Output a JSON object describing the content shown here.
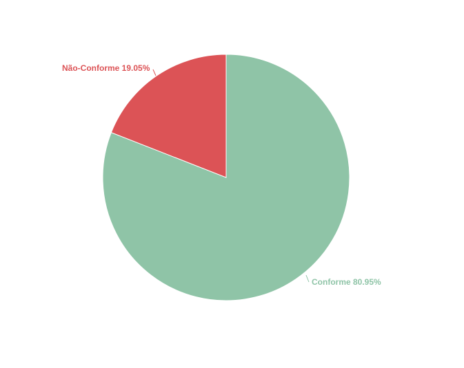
{
  "chart_data": {
    "type": "pie",
    "slices": [
      {
        "label": "Conforme",
        "value": 80.95,
        "text": "Conforme 80.95%",
        "color": "#8fc4a7"
      },
      {
        "label": "Não-Conforme",
        "value": 19.05,
        "text": "Não-Conforme 19.05%",
        "color": "#dc5356"
      }
    ]
  }
}
